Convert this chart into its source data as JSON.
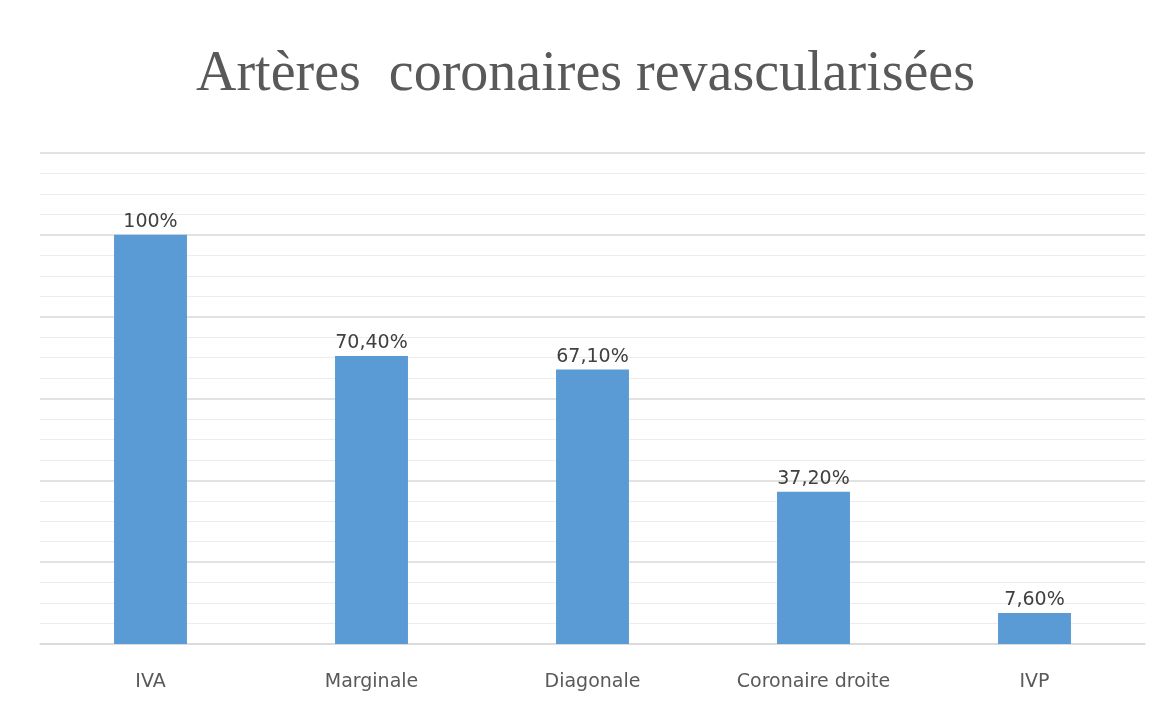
{
  "chart_data": {
    "type": "bar",
    "title": "Artères  coronaires revascularisées",
    "categories": [
      "IVA",
      "Marginale",
      "Diagonale",
      "Coronaire droite",
      "IVP"
    ],
    "values": [
      100,
      70.4,
      67.1,
      37.2,
      7.6
    ],
    "value_labels": [
      "100%",
      "70,40%",
      "67,10%",
      "37,20%",
      "7,60%"
    ],
    "color": "#5b9bd5",
    "ylim": [
      0,
      120
    ],
    "yticks": [
      {
        "value": 0,
        "label": null
      },
      {
        "value": 20,
        "label": null
      },
      {
        "value": 40,
        "label": null
      },
      {
        "value": 60,
        "label": null
      },
      {
        "value": 80,
        "label": null
      },
      {
        "value": 100,
        "label": null
      },
      {
        "value": 120,
        "label": null
      }
    ],
    "tick_labels": "x",
    "grid": true
  }
}
